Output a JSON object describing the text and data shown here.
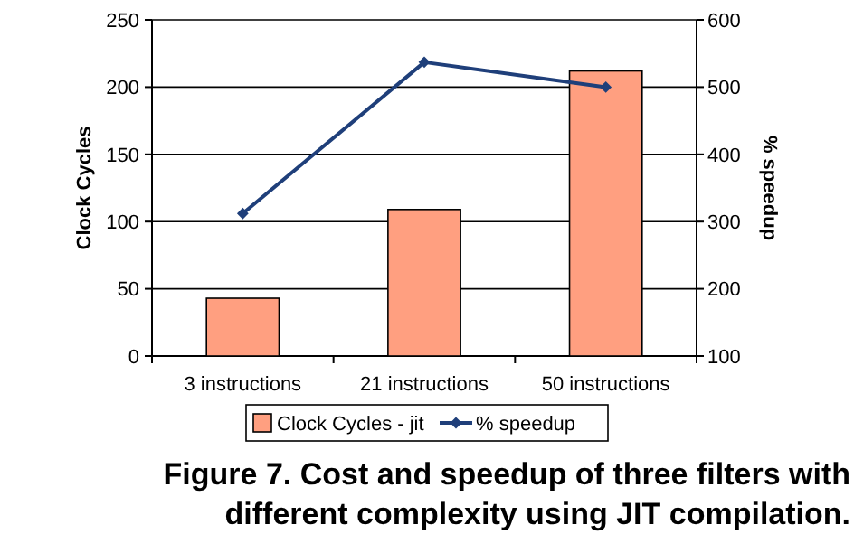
{
  "chart_data": {
    "type": "bar",
    "categories": [
      "3 instructions",
      "21 instructions",
      "50 instructions"
    ],
    "series": [
      {
        "name": "Clock Cycles - jit",
        "color": "#ff9f80",
        "values": [
          43,
          109,
          212
        ]
      },
      {
        "name": "% speedup",
        "type": "line",
        "axis": "y2",
        "color": "#1f3f7a",
        "values": [
          312,
          537,
          500
        ]
      }
    ],
    "ylabel": "Clock Cycles",
    "y2label": "% speedup",
    "ylim": [
      0,
      250
    ],
    "yticks": [
      0,
      50,
      100,
      150,
      200,
      250
    ],
    "y2lim": [
      100,
      600
    ],
    "y2ticks": [
      100,
      200,
      300,
      400,
      500,
      600
    ],
    "grid": "y",
    "legend": "bottom",
    "marker": "diamond",
    "annotations": [
      "Figure 7. Cost and speedup of three filters with different complexity using JIT compilation."
    ]
  }
}
